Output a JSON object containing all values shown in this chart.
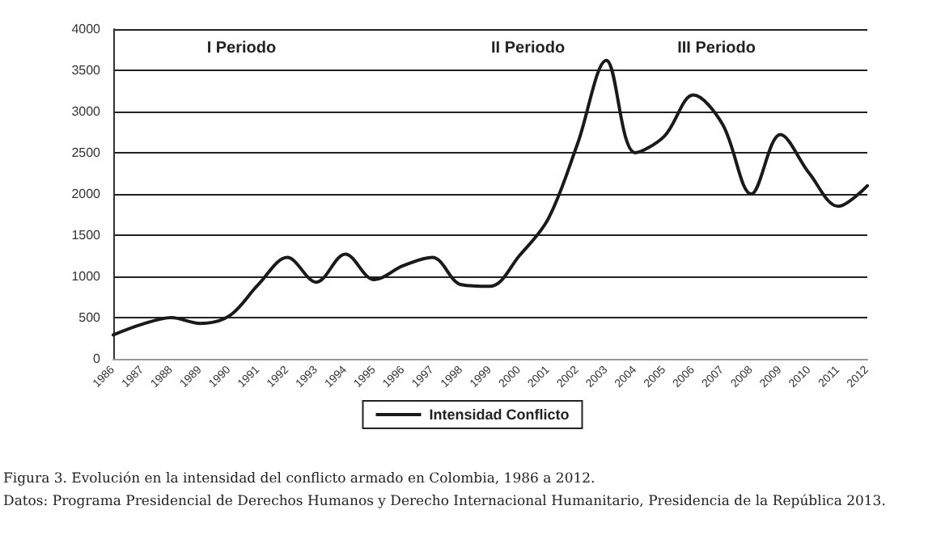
{
  "chart_data": {
    "type": "line",
    "categories": [
      "1986",
      "1987",
      "1988",
      "1989",
      "1990",
      "1991",
      "1992",
      "1993",
      "1994",
      "1995",
      "1996",
      "1997",
      "1998",
      "1999",
      "2000",
      "2001",
      "2002",
      "2003",
      "2004",
      "2005",
      "2006",
      "2007",
      "2008",
      "2009",
      "2010",
      "2011",
      "2012"
    ],
    "series": [
      {
        "name": "Intensidad Conflicto",
        "color": "#1a1a1a",
        "values": [
          290,
          420,
          500,
          430,
          520,
          900,
          1230,
          930,
          1270,
          960,
          1130,
          1230,
          900,
          880,
          1250,
          1700,
          2600,
          3620,
          2500,
          2700,
          3200,
          2850,
          2000,
          2720,
          2250,
          1850,
          2100
        ]
      }
    ],
    "ylim": [
      0,
      4000
    ],
    "yticks": [
      0,
      500,
      1000,
      1500,
      2000,
      2500,
      3000,
      3500,
      4000
    ],
    "grid": "y",
    "legend": "bottom",
    "marker": "none",
    "line_style": "solid",
    "annotations": [
      "I Periodo",
      "II Periodo",
      "III Periodo",
      "Figura 3. Evolución en la intensidad del conflicto armado en Colombia, 1986 a 2012.",
      "Datos: Programa Presidencial de Derechos Humanos y Derecho Internacional Humanitario, Presidencia de la República 2013."
    ]
  }
}
